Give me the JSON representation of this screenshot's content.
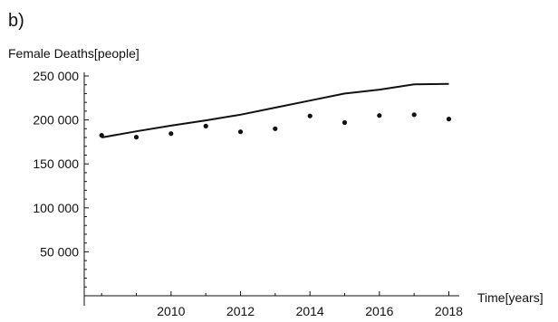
{
  "chart_data": {
    "type": "line",
    "panel_label": "b)",
    "ylabel": "Female Deaths[people]",
    "xlabel": "Time[years]",
    "xlim": [
      2007.5,
      2018.3
    ],
    "ylim": [
      0,
      250000
    ],
    "x_ticks": [
      2010,
      2012,
      2014,
      2016,
      2018
    ],
    "y_ticks": [
      50000,
      100000,
      150000,
      200000,
      250000
    ],
    "y_tick_labels": [
      "50 000",
      "100 000",
      "150 000",
      "200 000",
      "250 000"
    ],
    "grid": false,
    "series": [
      {
        "kind": "line",
        "color": "#111111",
        "x": [
          2008,
          2009,
          2010,
          2011,
          2012,
          2013,
          2014,
          2015,
          2016,
          2017,
          2018
        ],
        "values": [
          180000,
          187000,
          193500,
          199500,
          206000,
          214000,
          222000,
          230000,
          234500,
          240500,
          241000
        ]
      },
      {
        "kind": "scatter",
        "color": "#111111",
        "x": [
          2008,
          2009,
          2010,
          2011,
          2012,
          2013,
          2014,
          2015,
          2016,
          2017,
          2018
        ],
        "values": [
          182500,
          180500,
          184500,
          193000,
          186500,
          190000,
          204500,
          197000,
          205000,
          206000,
          201000
        ]
      }
    ]
  }
}
